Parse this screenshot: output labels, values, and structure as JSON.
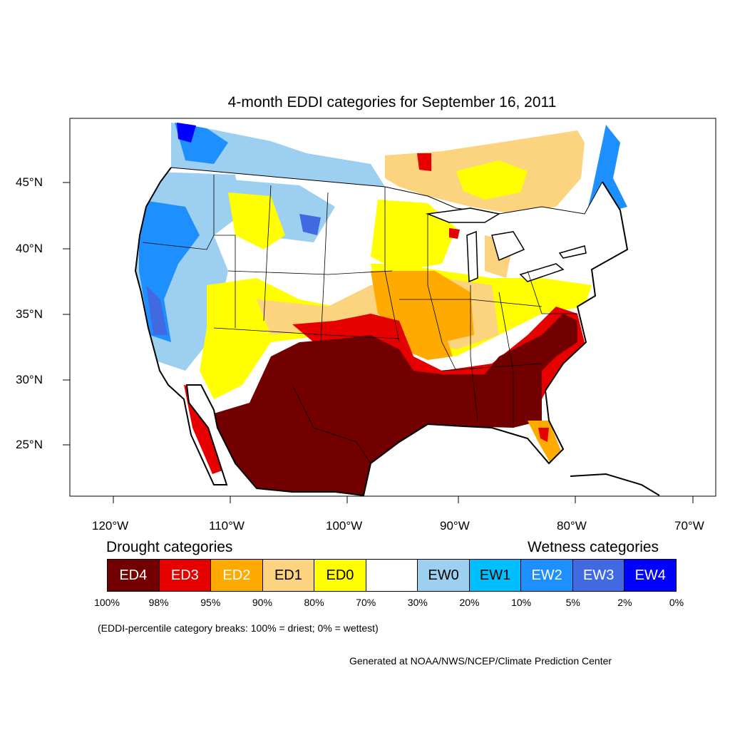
{
  "title": "4-month EDDI categories for September 16, 2011",
  "lat_labels": [
    "45°N",
    "40°N",
    "35°N",
    "30°N",
    "25°N"
  ],
  "lon_labels": [
    "120°W",
    "110°W",
    "100°W",
    "90°W",
    "80°W",
    "70°W"
  ],
  "legend": {
    "drought_heading": "Drought categories",
    "wetness_heading": "Wetness categories",
    "categories": [
      {
        "label": "ED4",
        "color": "#730000",
        "text_color": "#ffffff"
      },
      {
        "label": "ED3",
        "color": "#e60000",
        "text_color": "#ffffff"
      },
      {
        "label": "ED2",
        "color": "#ffaa00",
        "text_color": "#ffffff"
      },
      {
        "label": "ED1",
        "color": "#fcd37f",
        "text_color": "#000000"
      },
      {
        "label": "ED0",
        "color": "#ffff00",
        "text_color": "#000000"
      },
      {
        "label": "",
        "color": "#ffffff",
        "text_color": "#000000"
      },
      {
        "label": "EW0",
        "color": "#9ccff0",
        "text_color": "#000000"
      },
      {
        "label": "EW1",
        "color": "#00bfff",
        "text_color": "#000000"
      },
      {
        "label": "EW2",
        "color": "#1e8fff",
        "text_color": "#ffffff"
      },
      {
        "label": "EW3",
        "color": "#4169e1",
        "text_color": "#ffffff"
      },
      {
        "label": "EW4",
        "color": "#0000ff",
        "text_color": "#ffffff"
      }
    ],
    "breaks": [
      "100%",
      "98%",
      "95%",
      "90%",
      "80%",
      "70%",
      "30%",
      "20%",
      "10%",
      "5%",
      "2%",
      "0%"
    ]
  },
  "note": "(EDDI-percentile category breaks: 100% = driest; 0% = wettest)",
  "credit": "Generated at NOAA/NWS/NCEP/Climate Prediction Center"
}
